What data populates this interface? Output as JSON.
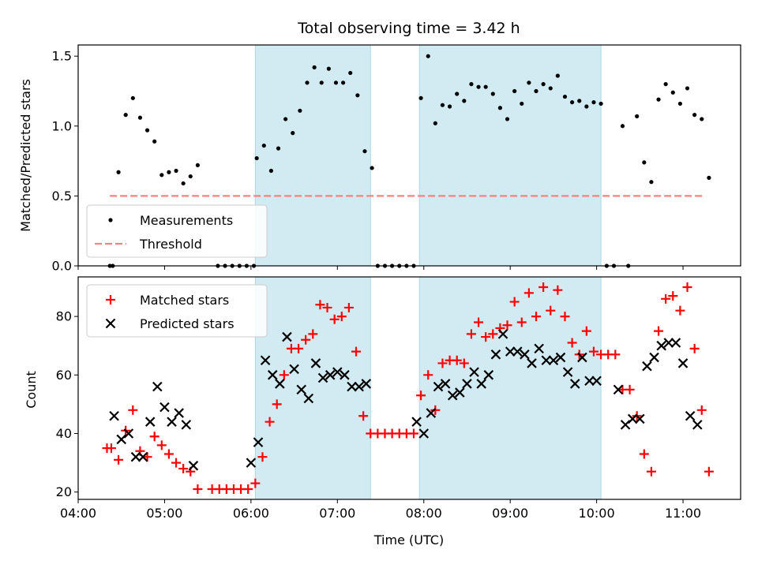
{
  "chart_data": [
    {
      "type": "scatter",
      "title": "Total observing time = 3.42 h",
      "ylabel": "Matched/Predicted stars",
      "xlabel": "",
      "xlim": [
        "04:00",
        "11:40"
      ],
      "ylim": [
        0,
        1.58
      ],
      "yticks": [
        "0.0",
        "0.5",
        "1.0",
        "1.5"
      ],
      "grid": false,
      "legend_position": "lower-left",
      "shaded_intervals": [
        [
          "06:03",
          "07:23"
        ],
        [
          "07:57",
          "10:03"
        ]
      ],
      "series": [
        {
          "name": "Measurements",
          "color": "#000000",
          "marker": "dot",
          "points": [
            [
              "04:22",
              0
            ],
            [
              "04:24",
              0
            ],
            [
              "04:28",
              0.67
            ],
            [
              "04:33",
              1.08
            ],
            [
              "04:38",
              1.2
            ],
            [
              "04:43",
              1.06
            ],
            [
              "04:48",
              0.97
            ],
            [
              "04:53",
              0.89
            ],
            [
              "04:58",
              0.65
            ],
            [
              "05:03",
              0.67
            ],
            [
              "05:08",
              0.68
            ],
            [
              "05:13",
              0.59
            ],
            [
              "05:18",
              0.64
            ],
            [
              "05:23",
              0.72
            ],
            [
              "05:37",
              0
            ],
            [
              "05:42",
              0
            ],
            [
              "05:47",
              0
            ],
            [
              "05:52",
              0
            ],
            [
              "05:57",
              0
            ],
            [
              "06:02",
              0
            ],
            [
              "06:04",
              0.77
            ],
            [
              "06:09",
              0.86
            ],
            [
              "06:14",
              0.68
            ],
            [
              "06:19",
              0.84
            ],
            [
              "06:24",
              1.05
            ],
            [
              "06:29",
              0.95
            ],
            [
              "06:34",
              1.11
            ],
            [
              "06:39",
              1.31
            ],
            [
              "06:44",
              1.42
            ],
            [
              "06:49",
              1.31
            ],
            [
              "06:54",
              1.41
            ],
            [
              "06:59",
              1.31
            ],
            [
              "07:04",
              1.31
            ],
            [
              "07:09",
              1.38
            ],
            [
              "07:14",
              1.22
            ],
            [
              "07:19",
              0.82
            ],
            [
              "07:24",
              0.7
            ],
            [
              "07:28",
              0
            ],
            [
              "07:33",
              0
            ],
            [
              "07:38",
              0
            ],
            [
              "07:43",
              0
            ],
            [
              "07:48",
              0
            ],
            [
              "07:53",
              0
            ],
            [
              "07:58",
              1.2
            ],
            [
              "08:03",
              1.5
            ],
            [
              "08:08",
              1.02
            ],
            [
              "08:13",
              1.15
            ],
            [
              "08:18",
              1.14
            ],
            [
              "08:23",
              1.23
            ],
            [
              "08:28",
              1.18
            ],
            [
              "08:33",
              1.3
            ],
            [
              "08:38",
              1.28
            ],
            [
              "08:43",
              1.28
            ],
            [
              "08:48",
              1.23
            ],
            [
              "08:53",
              1.13
            ],
            [
              "08:58",
              1.05
            ],
            [
              "09:03",
              1.25
            ],
            [
              "09:08",
              1.16
            ],
            [
              "09:13",
              1.31
            ],
            [
              "09:18",
              1.25
            ],
            [
              "09:23",
              1.3
            ],
            [
              "09:28",
              1.27
            ],
            [
              "09:33",
              1.36
            ],
            [
              "09:38",
              1.21
            ],
            [
              "09:43",
              1.17
            ],
            [
              "09:48",
              1.18
            ],
            [
              "09:53",
              1.14
            ],
            [
              "09:58",
              1.17
            ],
            [
              "10:03",
              1.16
            ],
            [
              "10:07",
              0
            ],
            [
              "10:12",
              0
            ],
            [
              "10:22",
              0
            ],
            [
              "10:18",
              1.0
            ],
            [
              "10:28",
              1.07
            ],
            [
              "10:33",
              0.74
            ],
            [
              "10:38",
              0.6
            ],
            [
              "10:43",
              1.19
            ],
            [
              "10:48",
              1.3
            ],
            [
              "10:53",
              1.24
            ],
            [
              "10:58",
              1.16
            ],
            [
              "11:03",
              1.27
            ],
            [
              "11:08",
              1.08
            ],
            [
              "11:13",
              1.05
            ],
            [
              "11:18",
              0.63
            ]
          ]
        },
        {
          "name": "Threshold",
          "color": "#ff7f7f",
          "style": "dashed",
          "points": [
            [
              "04:22",
              0.5
            ],
            [
              "11:15",
              0.5
            ]
          ]
        }
      ]
    },
    {
      "type": "scatter",
      "xlabel": "Time (UTC)",
      "ylabel": "Count",
      "xlim": [
        "04:00",
        "11:40"
      ],
      "ylim": [
        17.5,
        93.5
      ],
      "xticks": [
        "04:00",
        "05:00",
        "06:00",
        "07:00",
        "08:00",
        "09:00",
        "10:00",
        "11:00"
      ],
      "yticks": [
        "20",
        "40",
        "60",
        "80"
      ],
      "grid": false,
      "legend_position": "top-left",
      "shaded_intervals": [
        [
          "06:03",
          "07:23"
        ],
        [
          "07:57",
          "10:03"
        ]
      ],
      "series": [
        {
          "name": "Matched stars",
          "color": "#ff0000",
          "marker": "plus",
          "points": [
            [
              "04:20",
              35
            ],
            [
              "04:23",
              35
            ],
            [
              "04:28",
              31
            ],
            [
              "04:33",
              41
            ],
            [
              "04:38",
              48
            ],
            [
              "04:43",
              34
            ],
            [
              "04:48",
              32
            ],
            [
              "04:53",
              39
            ],
            [
              "04:58",
              36
            ],
            [
              "05:03",
              33
            ],
            [
              "05:08",
              30
            ],
            [
              "05:13",
              28
            ],
            [
              "05:18",
              27
            ],
            [
              "05:23",
              21
            ],
            [
              "05:33",
              21
            ],
            [
              "05:38",
              21
            ],
            [
              "05:43",
              21
            ],
            [
              "05:48",
              21
            ],
            [
              "05:53",
              21
            ],
            [
              "05:58",
              21
            ],
            [
              "06:03",
              23
            ],
            [
              "06:08",
              32
            ],
            [
              "06:13",
              44
            ],
            [
              "06:18",
              50
            ],
            [
              "06:23",
              60
            ],
            [
              "06:28",
              69
            ],
            [
              "06:33",
              69
            ],
            [
              "06:38",
              72
            ],
            [
              "06:43",
              74
            ],
            [
              "06:48",
              84
            ],
            [
              "06:53",
              83
            ],
            [
              "06:58",
              79
            ],
            [
              "07:03",
              80
            ],
            [
              "07:08",
              83
            ],
            [
              "07:13",
              68
            ],
            [
              "07:18",
              46
            ],
            [
              "07:23",
              40
            ],
            [
              "07:28",
              40
            ],
            [
              "07:33",
              40
            ],
            [
              "07:38",
              40
            ],
            [
              "07:43",
              40
            ],
            [
              "07:48",
              40
            ],
            [
              "07:53",
              40
            ],
            [
              "07:58",
              53
            ],
            [
              "08:03",
              60
            ],
            [
              "08:08",
              48
            ],
            [
              "08:13",
              64
            ],
            [
              "08:18",
              65
            ],
            [
              "08:23",
              65
            ],
            [
              "08:28",
              64
            ],
            [
              "08:33",
              74
            ],
            [
              "08:38",
              78
            ],
            [
              "08:43",
              73
            ],
            [
              "08:48",
              74
            ],
            [
              "08:53",
              76
            ],
            [
              "08:58",
              77
            ],
            [
              "09:03",
              85
            ],
            [
              "09:08",
              78
            ],
            [
              "09:13",
              88
            ],
            [
              "09:18",
              80
            ],
            [
              "09:23",
              90
            ],
            [
              "09:28",
              82
            ],
            [
              "09:33",
              89
            ],
            [
              "09:38",
              80
            ],
            [
              "09:43",
              71
            ],
            [
              "09:48",
              67
            ],
            [
              "09:53",
              75
            ],
            [
              "09:58",
              68
            ],
            [
              "10:03",
              67
            ],
            [
              "10:08",
              67
            ],
            [
              "10:13",
              67
            ],
            [
              "10:18",
              55
            ],
            [
              "10:23",
              55
            ],
            [
              "10:28",
              46
            ],
            [
              "10:33",
              33
            ],
            [
              "10:38",
              27
            ],
            [
              "10:43",
              75
            ],
            [
              "10:48",
              86
            ],
            [
              "10:53",
              87
            ],
            [
              "10:58",
              82
            ],
            [
              "11:03",
              90
            ],
            [
              "11:08",
              69
            ],
            [
              "11:13",
              48
            ],
            [
              "11:18",
              27
            ]
          ]
        },
        {
          "name": "Predicted stars",
          "color": "#000000",
          "marker": "x",
          "points": [
            [
              "04:25",
              46
            ],
            [
              "04:30",
              38
            ],
            [
              "04:35",
              40
            ],
            [
              "04:40",
              32
            ],
            [
              "04:45",
              32
            ],
            [
              "04:50",
              44
            ],
            [
              "04:55",
              56
            ],
            [
              "05:00",
              49
            ],
            [
              "05:05",
              44
            ],
            [
              "05:10",
              47
            ],
            [
              "05:15",
              43
            ],
            [
              "05:20",
              29
            ],
            [
              "06:00",
              30
            ],
            [
              "06:05",
              37
            ],
            [
              "06:10",
              65
            ],
            [
              "06:15",
              60
            ],
            [
              "06:20",
              57
            ],
            [
              "06:25",
              73
            ],
            [
              "06:30",
              62
            ],
            [
              "06:35",
              55
            ],
            [
              "06:40",
              52
            ],
            [
              "06:45",
              64
            ],
            [
              "06:50",
              59
            ],
            [
              "06:55",
              60
            ],
            [
              "07:00",
              61
            ],
            [
              "07:05",
              60
            ],
            [
              "07:10",
              56
            ],
            [
              "07:15",
              56
            ],
            [
              "07:20",
              57
            ],
            [
              "07:55",
              44
            ],
            [
              "08:00",
              40
            ],
            [
              "08:05",
              47
            ],
            [
              "08:10",
              56
            ],
            [
              "08:15",
              57
            ],
            [
              "08:20",
              53
            ],
            [
              "08:25",
              54
            ],
            [
              "08:30",
              57
            ],
            [
              "08:35",
              61
            ],
            [
              "08:40",
              57
            ],
            [
              "08:45",
              60
            ],
            [
              "08:50",
              67
            ],
            [
              "08:55",
              74
            ],
            [
              "09:00",
              68
            ],
            [
              "09:05",
              68
            ],
            [
              "09:10",
              67
            ],
            [
              "09:15",
              64
            ],
            [
              "09:20",
              69
            ],
            [
              "09:25",
              65
            ],
            [
              "09:30",
              65
            ],
            [
              "09:35",
              66
            ],
            [
              "09:40",
              61
            ],
            [
              "09:45",
              57
            ],
            [
              "09:50",
              66
            ],
            [
              "09:55",
              58
            ],
            [
              "10:00",
              58
            ],
            [
              "10:15",
              55
            ],
            [
              "10:20",
              43
            ],
            [
              "10:25",
              45
            ],
            [
              "10:30",
              45
            ],
            [
              "10:35",
              63
            ],
            [
              "10:40",
              66
            ],
            [
              "10:45",
              70
            ],
            [
              "10:50",
              71
            ],
            [
              "10:55",
              71
            ],
            [
              "11:00",
              64
            ],
            [
              "11:05",
              46
            ],
            [
              "11:10",
              43
            ]
          ]
        }
      ]
    }
  ]
}
